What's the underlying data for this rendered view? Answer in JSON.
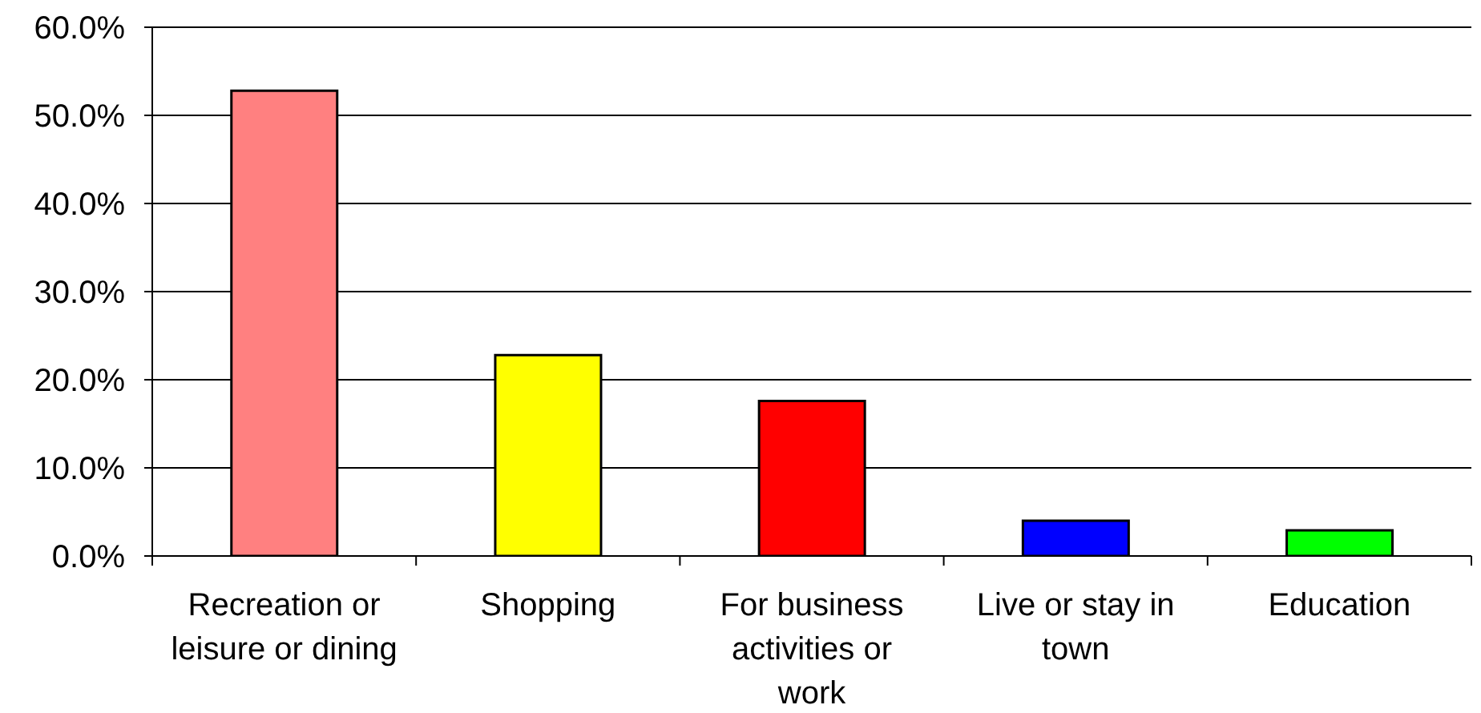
{
  "chart_data": {
    "type": "bar",
    "categories": [
      "Recreation or leisure or dining",
      "Shopping",
      "For business activities or work",
      "Live or stay in town",
      "Education"
    ],
    "values": [
      52.8,
      22.8,
      17.6,
      4.0,
      2.9
    ],
    "colors": [
      "#ff8080",
      "#ffff00",
      "#ff0000",
      "#0000ff",
      "#00ff00"
    ],
    "ylim": [
      0,
      60
    ],
    "yticks": [
      {
        "value": 0,
        "label": "0.0%"
      },
      {
        "value": 10,
        "label": "10.0%"
      },
      {
        "value": 20,
        "label": "20.0%"
      },
      {
        "value": 30,
        "label": "30.0%"
      },
      {
        "value": 40,
        "label": "40.0%"
      },
      {
        "value": 50,
        "label": "50.0%"
      },
      {
        "value": 60,
        "label": "60.0%"
      }
    ],
    "grid": "y"
  }
}
